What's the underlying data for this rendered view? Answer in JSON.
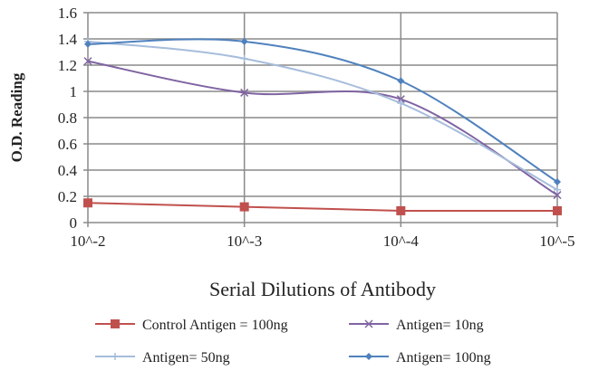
{
  "chart_data": {
    "type": "line",
    "title": "",
    "xlabel": "Serial Dilutions  of Antibody",
    "ylabel": "O.D. Reading",
    "categories": [
      "10^-2",
      "10^-3",
      "10^-4",
      "10^-5"
    ],
    "yticks": [
      "0",
      "0.2",
      "0.4",
      "0.6",
      "0.8",
      "1",
      "1.2",
      "1.4",
      "1.6"
    ],
    "ylim": [
      0,
      1.6
    ],
    "grid": true,
    "legend_position": "bottom",
    "series": [
      {
        "name": "Control Antigen = 100ng",
        "color": "#c0504d",
        "marker": "square",
        "smooth": false,
        "values": [
          0.15,
          0.12,
          0.09,
          0.09
        ]
      },
      {
        "name": "Antigen= 10ng",
        "color": "#8064a2",
        "marker": "x",
        "smooth": true,
        "values": [
          1.23,
          0.99,
          0.94,
          0.21
        ]
      },
      {
        "name": "Antigen= 50ng",
        "color": "#a6bddb",
        "marker": "plus",
        "smooth": true,
        "values": [
          1.38,
          1.25,
          0.91,
          0.25
        ]
      },
      {
        "name": "Antigen= 100ng",
        "color": "#4f81bd",
        "marker": "diamond",
        "smooth": true,
        "values": [
          1.36,
          1.38,
          1.08,
          0.31
        ]
      }
    ]
  }
}
